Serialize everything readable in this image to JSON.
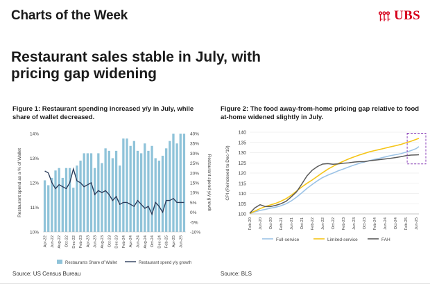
{
  "header": {
    "title": "Charts of the Week",
    "brand": "UBS",
    "brand_color": "#d6001c",
    "logo_icon": "ubs-keys-icon"
  },
  "headline": "Restaurant sales stable in July, with pricing gap widening",
  "figure1": {
    "title": "Figure 1: Restaurant spending increased y/y in July, while share of wallet decreased.",
    "source": "Source: US Census Bureau"
  },
  "figure2": {
    "title": "Figure 2: The food away-from-home pricing gap relative to food at-home widened slightly in July.",
    "source": "Source: BLS"
  },
  "chart_data": [
    {
      "type": "bar",
      "ylabel": "Restaurant spend as a % of Wallet",
      "y2label": "Restaurant spend y/y growth",
      "ylim": [
        10,
        14
      ],
      "y2lim": [
        -10,
        40
      ],
      "yticks": [
        "10%",
        "11%",
        "12%",
        "13%",
        "14%"
      ],
      "y2ticks": [
        "-10%",
        "-5%",
        "0%",
        "5%",
        "10%",
        "15%",
        "20%",
        "25%",
        "30%",
        "35%",
        "40%"
      ],
      "categories": [
        "Apr-22",
        "May-22",
        "Jun-22",
        "Jul-22",
        "Aug-22",
        "Sep-22",
        "Oct-22",
        "Nov-22",
        "Dec-22",
        "Jan-23",
        "Feb-23",
        "Mar-23",
        "Apr-23",
        "May-23",
        "Jun-23",
        "Jul-23",
        "Aug-23",
        "Sep-23",
        "Oct-23",
        "Nov-23",
        "Dec-23",
        "Jan-24",
        "Feb-24",
        "Mar-24",
        "Apr-24",
        "May-24",
        "Jun-24",
        "Jul-24",
        "Aug-24",
        "Sep-24",
        "Oct-24",
        "Nov-24",
        "Dec-24",
        "Jan-25",
        "Feb-25",
        "Mar-25",
        "Apr-25",
        "May-25",
        "Jun-25",
        "Jul-25"
      ],
      "x_tick_labels": [
        "Apr-22",
        "Jun-22",
        "Aug-22",
        "Oct-22",
        "Dec-22",
        "Feb-23",
        "Apr-23",
        "Jun-23",
        "Aug-23",
        "Oct-23",
        "Dec-23",
        "Feb-24",
        "Apr-24",
        "Jun-24",
        "Aug-24",
        "Oct-24",
        "Dec-24",
        "Feb-25",
        "Apr-25",
        "Jun-25"
      ],
      "series": [
        {
          "name": "Restaurants Share of Wallet",
          "axis": "left",
          "color": "#8fc3d9",
          "values": [
            12.1,
            11.9,
            12.2,
            12.5,
            12.6,
            12.2,
            12.6,
            12.6,
            11.8,
            12.7,
            12.9,
            13.2,
            13.2,
            13.2,
            12.6,
            13.2,
            12.8,
            13.4,
            13.3,
            13.0,
            13.3,
            12.7,
            13.8,
            13.8,
            13.5,
            13.7,
            13.3,
            13.2,
            13.6,
            13.3,
            13.5,
            13.0,
            12.9,
            13.1,
            13.4,
            13.7,
            14.0,
            13.6,
            14.0,
            14.0
          ]
        },
        {
          "name": "Restaurant spend y/y growth",
          "axis": "right",
          "color": "#2d3e5c",
          "values": [
            21,
            20,
            15,
            12,
            14,
            13,
            12,
            15,
            22,
            16,
            15,
            13,
            14,
            15,
            9,
            11,
            10,
            11,
            9,
            6,
            8,
            4,
            5,
            5,
            4,
            3,
            6,
            4,
            2,
            3,
            -1,
            5,
            3,
            0,
            6,
            6,
            7,
            5,
            5,
            5
          ]
        }
      ],
      "legend_position": "bottom"
    },
    {
      "type": "line",
      "ylabel": "CPI (Reindexed to Dec-'19)",
      "ylim": [
        100,
        140
      ],
      "yticks": [
        100,
        105,
        110,
        115,
        120,
        125,
        130,
        135,
        140
      ],
      "x_tick_labels": [
        "Feb-20",
        "Jun-20",
        "Oct-20",
        "Feb-21",
        "Jun-21",
        "Oct-21",
        "Feb-22",
        "Jun-22",
        "Oct-22",
        "Feb-23",
        "Jun-23",
        "Oct-23",
        "Feb-24",
        "Jun-24",
        "Oct-24",
        "Feb-25",
        "Jun-25"
      ],
      "x_index": [
        0,
        2,
        4,
        6,
        8,
        10,
        12,
        14,
        16,
        18,
        20,
        22,
        24,
        26,
        28,
        30,
        32,
        34,
        36,
        38,
        40,
        42,
        44,
        46,
        48,
        50,
        52,
        54,
        56,
        58,
        60,
        62,
        64,
        65
      ],
      "series": [
        {
          "name": "Full-service",
          "color": "#9cc3e6",
          "values": [
            100.2,
            101.0,
            101.7,
            102.2,
            102.8,
            103.3,
            104.0,
            105.0,
            106.4,
            108.2,
            110.3,
            112.5,
            114.4,
            116.2,
            117.8,
            119.0,
            120.0,
            121.1,
            122.0,
            123.0,
            123.9,
            124.7,
            125.4,
            126.1,
            126.7,
            127.3,
            127.9,
            128.5,
            129.0,
            129.5,
            130.2,
            131.0,
            132.0,
            133.0
          ]
        },
        {
          "name": "Limited-service",
          "color": "#f5c518",
          "values": [
            100.2,
            101.4,
            102.6,
            103.6,
            104.4,
            105.2,
            106.2,
            107.5,
            109.2,
            111.2,
            113.2,
            115.0,
            116.6,
            118.4,
            120.2,
            121.9,
            123.3,
            124.6,
            125.8,
            126.9,
            127.9,
            128.8,
            129.6,
            130.4,
            131.0,
            131.6,
            132.2,
            132.8,
            133.4,
            134.0,
            134.8,
            135.6,
            136.5,
            137.0
          ]
        },
        {
          "name": "FAH",
          "color": "#5a5a5a",
          "values": [
            100.3,
            103.0,
            104.5,
            103.6,
            103.6,
            104.2,
            105.0,
            106.2,
            108.4,
            110.8,
            114.6,
            118.6,
            121.4,
            123.2,
            124.4,
            124.6,
            124.3,
            124.5,
            124.8,
            125.0,
            125.4,
            125.6,
            125.6,
            126.0,
            126.3,
            126.6,
            126.9,
            127.2,
            127.6,
            128.0,
            128.5,
            128.8,
            128.9,
            129.0
          ]
        }
      ],
      "annotation": "dashed-box",
      "legend_position": "bottom"
    }
  ]
}
